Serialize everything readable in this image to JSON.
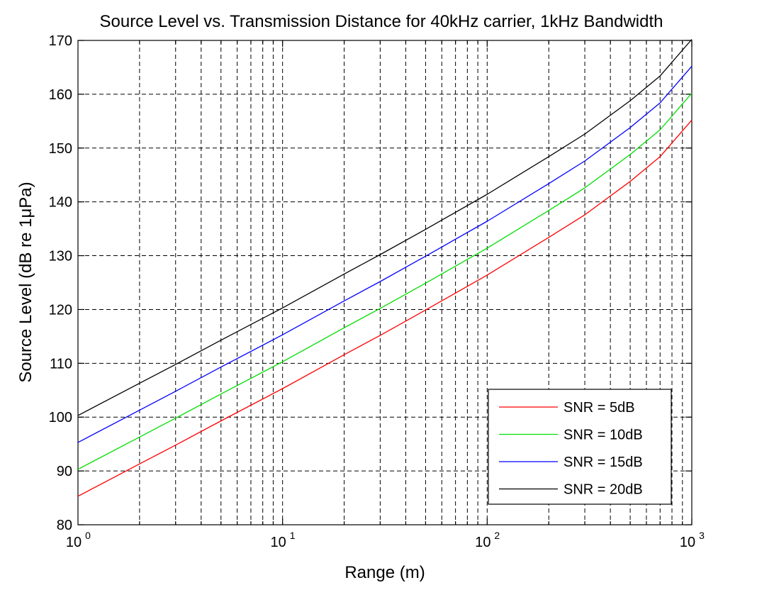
{
  "chart_data": {
    "type": "line",
    "title": "Source Level vs. Transmission Distance for 40kHz carrier, 1kHz Bandwidth",
    "xlabel": "Range (m)",
    "ylabel": "Source Level (dB re 1μPa)",
    "x_scale": "log",
    "xlim": [
      1,
      1000
    ],
    "ylim": [
      80,
      170
    ],
    "grid": true,
    "x_ticks": [
      {
        "value": 1,
        "base": "10",
        "exp": "0"
      },
      {
        "value": 10,
        "base": "10",
        "exp": "1"
      },
      {
        "value": 100,
        "base": "10",
        "exp": "2"
      },
      {
        "value": 1000,
        "base": "10",
        "exp": "3"
      }
    ],
    "y_ticks": [
      80,
      90,
      100,
      110,
      120,
      130,
      140,
      150,
      160,
      170
    ],
    "legend_position": "bottom-right",
    "x": [
      1,
      2,
      3,
      5,
      10,
      20,
      30,
      50,
      100,
      200,
      300,
      500,
      700,
      1000
    ],
    "series": [
      {
        "name": "SNR = 5dB",
        "color": "#ff0000",
        "values": [
          85.3,
          91.3,
          94.8,
          99.3,
          105.3,
          111.6,
          115.2,
          119.9,
          126.4,
          133.4,
          137.6,
          143.8,
          148.4,
          155.2
        ]
      },
      {
        "name": "SNR = 10dB",
        "color": "#00dd00",
        "values": [
          90.3,
          96.3,
          99.8,
          104.3,
          110.3,
          116.6,
          120.2,
          124.9,
          131.4,
          138.4,
          142.6,
          148.8,
          153.4,
          160.2
        ]
      },
      {
        "name": "SNR = 15dB",
        "color": "#0000ff",
        "values": [
          95.3,
          101.3,
          104.8,
          109.3,
          115.3,
          121.6,
          125.2,
          129.9,
          136.4,
          143.4,
          147.6,
          153.8,
          158.4,
          165.2
        ]
      },
      {
        "name": "SNR = 20dB",
        "color": "#000000",
        "values": [
          100.3,
          106.3,
          109.8,
          114.3,
          120.3,
          126.6,
          130.2,
          134.9,
          141.4,
          148.4,
          152.6,
          158.8,
          163.4,
          170.2
        ]
      }
    ]
  }
}
